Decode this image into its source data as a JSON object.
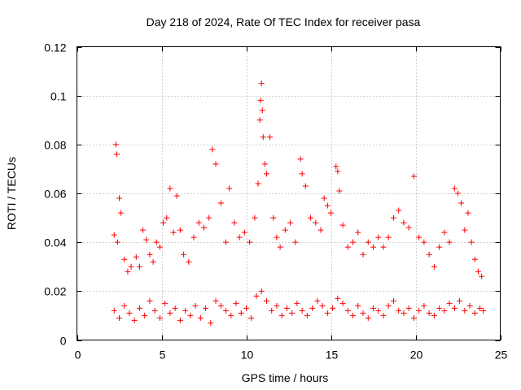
{
  "chart_data": {
    "type": "scatter",
    "title": "Day 218 of 2024, Rate Of TEC Index for receiver pasa",
    "xlabel": "GPS time / hours",
    "ylabel": "ROTI / TECUs",
    "xlim": [
      0,
      25
    ],
    "ylim": [
      0,
      0.12
    ],
    "xticks": [
      0,
      5,
      10,
      15,
      20,
      25
    ],
    "xtick_labels": [
      "0",
      "5",
      "10",
      "15",
      "20",
      "25"
    ],
    "yticks": [
      0,
      0.02,
      0.04,
      0.06,
      0.08,
      0.1,
      0.12
    ],
    "ytick_labels": [
      "0",
      "0.02",
      "0.04",
      "0.06",
      "0.08",
      "0.1",
      "0.12"
    ],
    "grid": true,
    "marker": "plus",
    "color": "#ff0000",
    "series": [
      {
        "x": [
          2.2,
          2.3,
          2.35,
          2.4,
          2.5,
          2.6,
          2.8,
          3.0,
          3.2,
          3.5,
          3.7,
          3.9,
          4.1,
          4.3,
          4.5,
          4.7,
          4.9,
          5.1,
          5.3,
          5.5,
          5.7,
          5.9,
          6.1,
          6.3,
          6.6,
          6.9,
          7.2,
          7.5,
          7.8,
          8.0,
          8.2,
          8.5,
          8.8,
          9.0,
          9.3,
          9.6,
          9.9,
          10.2,
          10.5,
          10.7,
          10.8,
          10.85,
          10.9,
          10.95,
          11.0,
          11.1,
          11.2,
          11.4,
          11.6,
          11.8,
          12.0,
          12.3,
          12.6,
          12.9,
          13.2,
          13.3,
          13.5,
          13.8,
          14.1,
          14.4,
          14.6,
          14.8,
          15.0,
          15.3,
          15.4,
          15.5,
          15.7,
          16.0,
          16.3,
          16.6,
          16.9,
          17.2,
          17.5,
          17.8,
          18.1,
          18.4,
          18.7,
          19.0,
          19.3,
          19.6,
          19.9,
          20.2,
          20.5,
          20.8,
          21.1,
          21.4,
          21.7,
          22.0,
          22.3,
          22.5,
          22.7,
          22.9,
          23.1,
          23.3,
          23.5,
          23.7,
          23.9
        ],
        "y": [
          0.043,
          0.08,
          0.076,
          0.04,
          0.058,
          0.052,
          0.033,
          0.028,
          0.03,
          0.034,
          0.03,
          0.045,
          0.041,
          0.035,
          0.032,
          0.04,
          0.038,
          0.048,
          0.05,
          0.062,
          0.044,
          0.059,
          0.045,
          0.035,
          0.032,
          0.042,
          0.048,
          0.046,
          0.05,
          0.078,
          0.072,
          0.056,
          0.04,
          0.062,
          0.048,
          0.042,
          0.044,
          0.04,
          0.05,
          0.064,
          0.09,
          0.098,
          0.105,
          0.094,
          0.083,
          0.072,
          0.068,
          0.083,
          0.05,
          0.042,
          0.038,
          0.045,
          0.048,
          0.04,
          0.074,
          0.068,
          0.063,
          0.05,
          0.048,
          0.045,
          0.058,
          0.055,
          0.052,
          0.071,
          0.069,
          0.061,
          0.047,
          0.038,
          0.04,
          0.044,
          0.035,
          0.04,
          0.038,
          0.042,
          0.038,
          0.042,
          0.05,
          0.053,
          0.048,
          0.046,
          0.067,
          0.042,
          0.04,
          0.035,
          0.03,
          0.038,
          0.044,
          0.04,
          0.062,
          0.06,
          0.056,
          0.045,
          0.052,
          0.04,
          0.033,
          0.028,
          0.026
        ]
      },
      {
        "x": [
          2.2,
          2.5,
          2.8,
          3.1,
          3.4,
          3.7,
          4.0,
          4.3,
          4.6,
          4.9,
          5.2,
          5.5,
          5.8,
          6.1,
          6.4,
          6.7,
          7.0,
          7.3,
          7.6,
          7.9,
          8.2,
          8.5,
          8.8,
          9.1,
          9.4,
          9.7,
          10.0,
          10.3,
          10.6,
          10.9,
          11.2,
          11.5,
          11.8,
          12.1,
          12.4,
          12.7,
          13.0,
          13.3,
          13.6,
          13.9,
          14.2,
          14.5,
          14.8,
          15.1,
          15.4,
          15.7,
          16.0,
          16.3,
          16.6,
          16.9,
          17.2,
          17.5,
          17.8,
          18.1,
          18.4,
          18.7,
          19.0,
          19.3,
          19.6,
          19.9,
          20.2,
          20.5,
          20.8,
          21.1,
          21.4,
          21.7,
          22.0,
          22.3,
          22.6,
          22.9,
          23.2,
          23.5,
          23.8,
          24.0
        ],
        "y": [
          0.012,
          0.009,
          0.014,
          0.011,
          0.008,
          0.013,
          0.01,
          0.016,
          0.012,
          0.009,
          0.015,
          0.011,
          0.013,
          0.008,
          0.012,
          0.01,
          0.014,
          0.009,
          0.013,
          0.007,
          0.016,
          0.014,
          0.012,
          0.01,
          0.015,
          0.011,
          0.013,
          0.009,
          0.018,
          0.02,
          0.016,
          0.012,
          0.014,
          0.01,
          0.013,
          0.011,
          0.015,
          0.012,
          0.01,
          0.013,
          0.016,
          0.014,
          0.011,
          0.013,
          0.017,
          0.015,
          0.012,
          0.01,
          0.014,
          0.011,
          0.009,
          0.013,
          0.012,
          0.01,
          0.014,
          0.016,
          0.012,
          0.011,
          0.013,
          0.009,
          0.012,
          0.014,
          0.011,
          0.01,
          0.013,
          0.012,
          0.015,
          0.013,
          0.016,
          0.012,
          0.014,
          0.011,
          0.013,
          0.012
        ]
      }
    ]
  }
}
